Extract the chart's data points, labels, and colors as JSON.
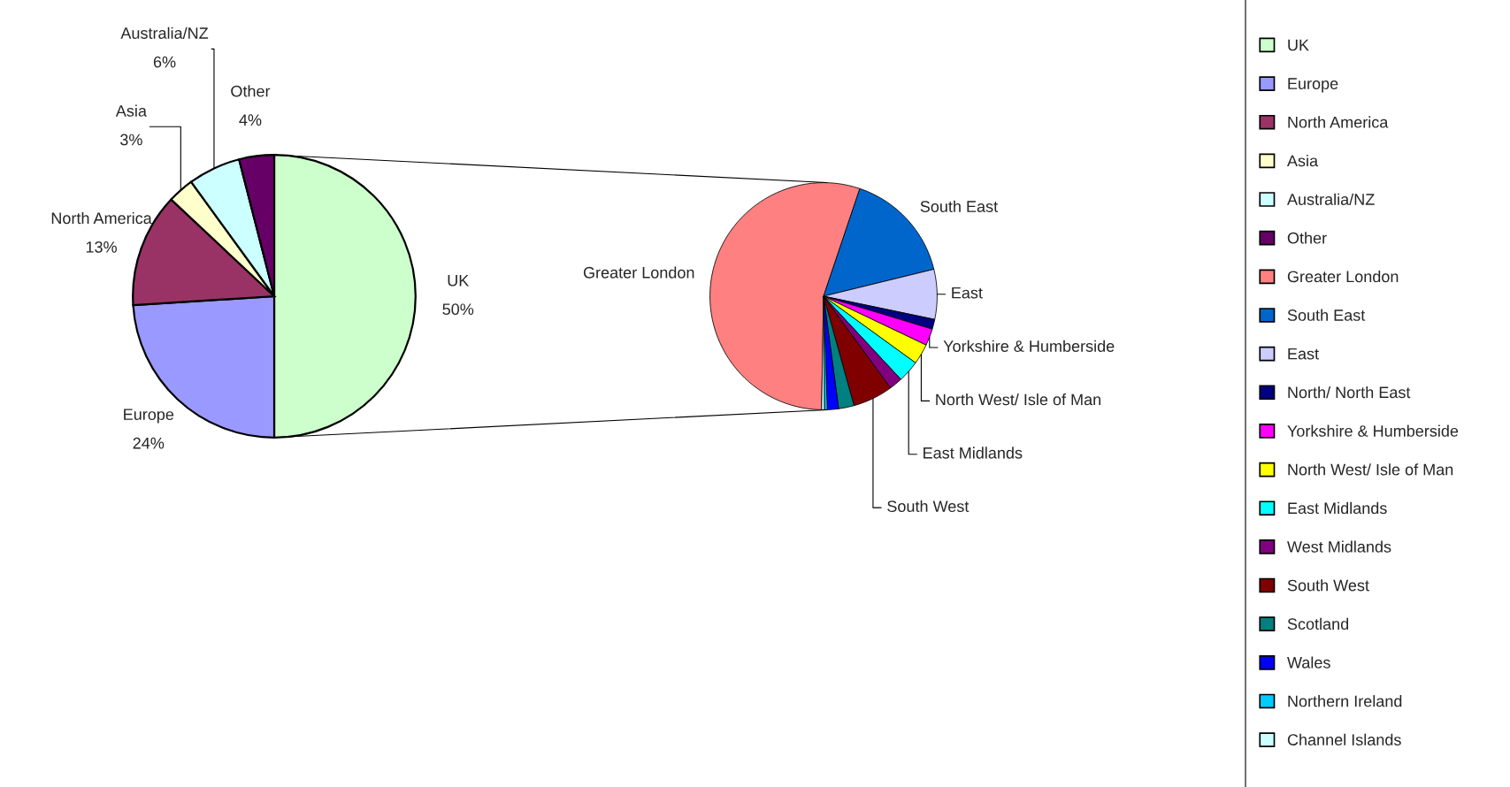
{
  "chart_data": [
    {
      "type": "pie",
      "categories": [
        "UK",
        "Europe",
        "North America",
        "Asia",
        "Australia/NZ",
        "Other"
      ],
      "values": [
        50,
        24,
        13,
        3,
        6,
        4
      ],
      "colors": [
        "#ccffcc",
        "#9999ff",
        "#993366",
        "#ffffcc",
        "#ccffff",
        "#660066"
      ],
      "value_labels": [
        "50%",
        "24%",
        "13%",
        "3%",
        "6%",
        "4%"
      ],
      "legend": "right"
    },
    {
      "type": "pie",
      "categories": [
        "Greater London",
        "South East",
        "East",
        "North/ North East",
        "Yorkshire & Humberside",
        "North West/ Isle of Man",
        "East Midlands",
        "West Midlands",
        "South West",
        "Scotland",
        "Wales",
        "Northern Ireland",
        "Channel Islands"
      ],
      "values": [
        54.9,
        16.0,
        7.1,
        1.4,
        2.4,
        2.9,
        3.1,
        1.9,
        5.7,
        2.2,
        1.6,
        0.4,
        0.4
      ],
      "colors": [
        "#ff8080",
        "#0066cc",
        "#ccccff",
        "#000080",
        "#ff00ff",
        "#ffff00",
        "#00ffff",
        "#800080",
        "#800000",
        "#008080",
        "#0000ff",
        "#00ccff",
        "#ccffff"
      ],
      "value_labels": [
        "Greater London",
        "South East",
        "East",
        null,
        "Yorkshire & Humberside",
        "North West/ Isle of Man",
        "East Midlands",
        null,
        "South West",
        null,
        null,
        null,
        null
      ],
      "legend": "right"
    }
  ]
}
